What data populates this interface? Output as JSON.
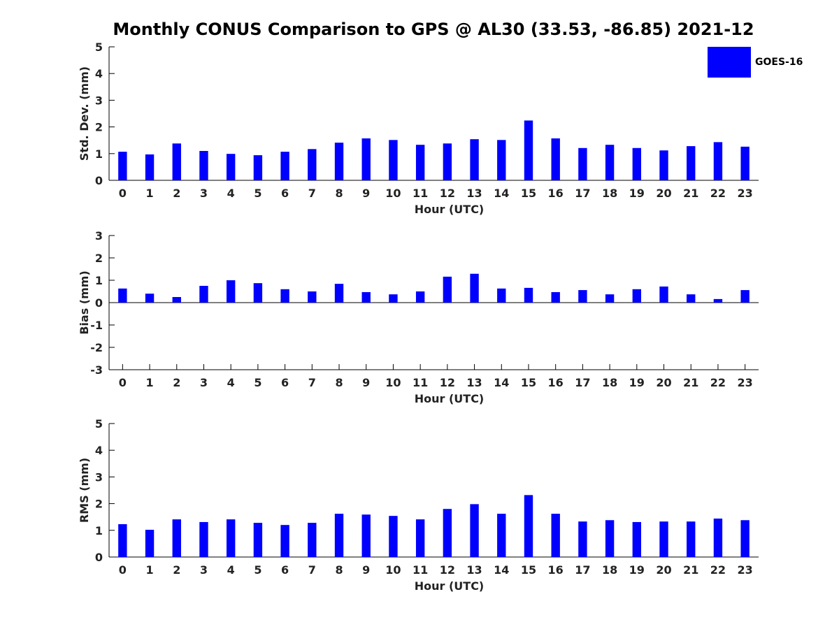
{
  "title": "Monthly CONUS Comparison to GPS @ AL30 (33.53, -86.85) 2021-12",
  "legend": {
    "label": "GOES-16",
    "color": "#0000ff"
  },
  "chart_data": [
    {
      "type": "bar",
      "categories": [
        "0",
        "1",
        "2",
        "3",
        "4",
        "5",
        "6",
        "7",
        "8",
        "9",
        "10",
        "11",
        "12",
        "13",
        "14",
        "15",
        "16",
        "17",
        "18",
        "19",
        "20",
        "21",
        "22",
        "23"
      ],
      "series": [
        {
          "name": "GOES-16",
          "values": [
            1.07,
            0.97,
            1.38,
            1.1,
            0.99,
            0.94,
            1.07,
            1.17,
            1.41,
            1.57,
            1.51,
            1.33,
            1.38,
            1.54,
            1.51,
            2.24,
            1.57,
            1.21,
            1.33,
            1.21,
            1.12,
            1.28,
            1.43,
            1.26
          ]
        }
      ],
      "xlabel": "Hour (UTC)",
      "ylabel": "Std. Dev. (mm)",
      "ylim": [
        0,
        5
      ],
      "yticks": [
        "0",
        "1",
        "2",
        "3",
        "4",
        "5"
      ]
    },
    {
      "type": "bar",
      "categories": [
        "0",
        "1",
        "2",
        "3",
        "4",
        "5",
        "6",
        "7",
        "8",
        "9",
        "10",
        "11",
        "12",
        "13",
        "14",
        "15",
        "16",
        "17",
        "18",
        "19",
        "20",
        "21",
        "22",
        "23"
      ],
      "series": [
        {
          "name": "GOES-16",
          "values": [
            0.63,
            0.4,
            0.25,
            0.75,
            1.0,
            0.87,
            0.6,
            0.5,
            0.84,
            0.47,
            0.37,
            0.5,
            1.16,
            1.29,
            0.63,
            0.66,
            0.47,
            0.56,
            0.37,
            0.6,
            0.72,
            0.37,
            0.16,
            0.56
          ]
        }
      ],
      "xlabel": "Hour (UTC)",
      "ylabel": "Bias (mm)",
      "ylim": [
        -3,
        3
      ],
      "yticks": [
        "-3",
        "-2",
        "-1",
        "0",
        "1",
        "2",
        "3"
      ]
    },
    {
      "type": "bar",
      "categories": [
        "0",
        "1",
        "2",
        "3",
        "4",
        "5",
        "6",
        "7",
        "8",
        "9",
        "10",
        "11",
        "12",
        "13",
        "14",
        "15",
        "16",
        "17",
        "18",
        "19",
        "20",
        "21",
        "22",
        "23"
      ],
      "series": [
        {
          "name": "GOES-16",
          "values": [
            1.23,
            1.02,
            1.41,
            1.31,
            1.41,
            1.28,
            1.2,
            1.28,
            1.62,
            1.59,
            1.54,
            1.41,
            1.8,
            1.98,
            1.62,
            2.32,
            1.62,
            1.33,
            1.38,
            1.31,
            1.33,
            1.33,
            1.44,
            1.38
          ]
        }
      ],
      "xlabel": "Hour (UTC)",
      "ylabel": "RMS (mm)",
      "ylim": [
        0,
        5
      ],
      "yticks": [
        "0",
        "1",
        "2",
        "3",
        "4",
        "5"
      ]
    }
  ]
}
